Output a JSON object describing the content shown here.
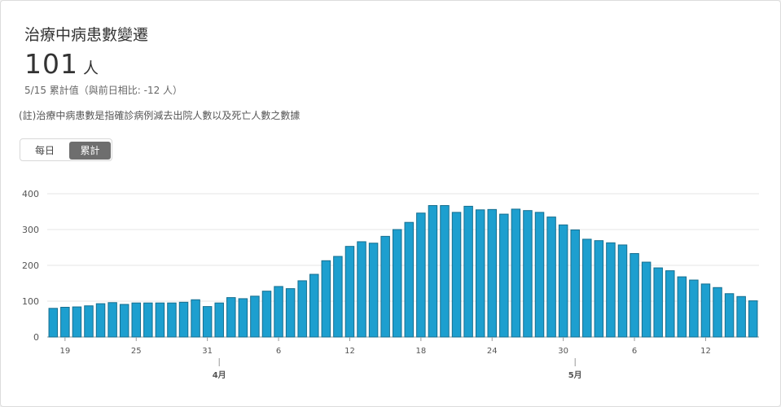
{
  "header": {
    "title": "治療中病患數變遷",
    "big_value": "101",
    "big_unit": "人",
    "subtitle": "5/15 累計值（與前日相比: -12 人）",
    "note": "(註)治療中病患數是指確診病例減去出院人數以及死亡人數之數據"
  },
  "toggle": {
    "daily_label": "每日",
    "cumulative_label": "累計",
    "selected": "cumulative"
  },
  "colors": {
    "bar": "#1d9fcf",
    "bar_border": "#166e8f",
    "toggle_active": "#6e6e6e"
  },
  "chart_data": {
    "type": "bar",
    "title": "",
    "xlabel": "",
    "ylabel": "",
    "ylim": [
      0,
      400
    ],
    "yticks": [
      0,
      100,
      200,
      300,
      400
    ],
    "grid": true,
    "x_start": "3/18",
    "x_end": "5/15",
    "x_tick_labels": [
      {
        "date": "3/19",
        "label": "19"
      },
      {
        "date": "3/25",
        "label": "25"
      },
      {
        "date": "3/31",
        "label": "31"
      },
      {
        "date": "4/6",
        "label": "6"
      },
      {
        "date": "4/12",
        "label": "12"
      },
      {
        "date": "4/18",
        "label": "18"
      },
      {
        "date": "4/24",
        "label": "24"
      },
      {
        "date": "4/30",
        "label": "30"
      },
      {
        "date": "5/6",
        "label": "6"
      },
      {
        "date": "5/12",
        "label": "12"
      }
    ],
    "month_labels": [
      {
        "date": "4/1",
        "label": "4月"
      },
      {
        "date": "5/1",
        "label": "5月"
      }
    ],
    "values": [
      80,
      83,
      84,
      87,
      93,
      96,
      91,
      95,
      95,
      95,
      95,
      97,
      104,
      85,
      95,
      110,
      107,
      114,
      128,
      141,
      135,
      157,
      175,
      213,
      225,
      253,
      266,
      262,
      281,
      300,
      320,
      346,
      367,
      367,
      348,
      365,
      355,
      356,
      343,
      357,
      353,
      348,
      335,
      313,
      299,
      273,
      269,
      263,
      257,
      233,
      209,
      193,
      185,
      168,
      159,
      148,
      138,
      121,
      113,
      101
    ]
  }
}
